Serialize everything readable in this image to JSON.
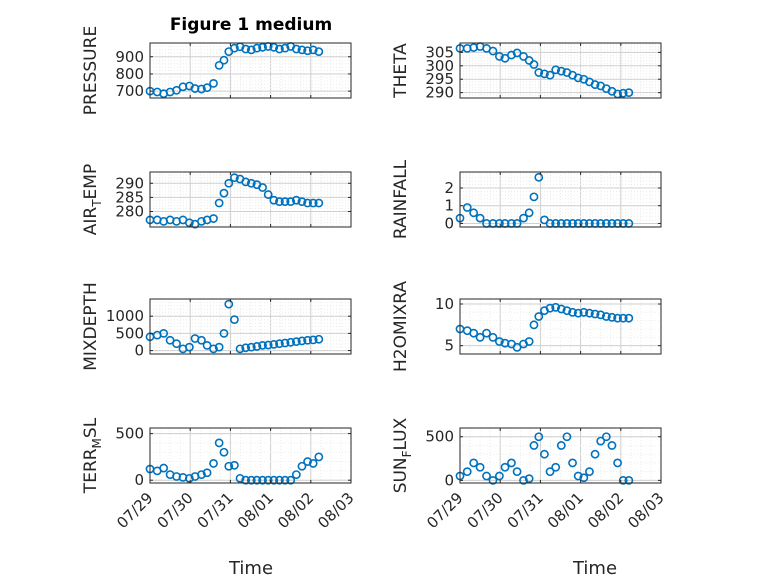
{
  "title": "Figure 1 medium",
  "xlabel": "Time",
  "x_tick_labels": [
    "07/29",
    "07/30",
    "07/31",
    "08/01",
    "08/02",
    "08/03"
  ],
  "colors": {
    "marker": "#0072BD",
    "axis": "#262626",
    "grid": "#dcdcdc",
    "background": "#ffffff"
  },
  "chart_data": [
    {
      "type": "scatter",
      "ylabel": "PRESSURE",
      "ylabel_sub": "",
      "ylabel_tail": "",
      "ylim": [
        660,
        980
      ],
      "yticks": [
        700,
        800,
        900
      ],
      "x": [
        0.0,
        0.18,
        0.34,
        0.5,
        0.66,
        0.82,
        0.98,
        1.12,
        1.28,
        1.42,
        1.58,
        1.72,
        1.84,
        1.96,
        2.1,
        2.24,
        2.38,
        2.52,
        2.66,
        2.8,
        2.94,
        3.08,
        3.22,
        3.36,
        3.5,
        3.64,
        3.78,
        3.92,
        4.06,
        4.2
      ],
      "y": [
        700,
        695,
        685,
        695,
        705,
        725,
        730,
        715,
        712,
        720,
        745,
        850,
        880,
        930,
        950,
        958,
        945,
        940,
        950,
        955,
        960,
        955,
        945,
        950,
        960,
        945,
        940,
        935,
        940,
        930
      ]
    },
    {
      "type": "scatter",
      "ylabel": "THETA",
      "ylabel_sub": "",
      "ylabel_tail": "",
      "ylim": [
        288,
        308.5
      ],
      "yticks": [
        290,
        295,
        300,
        305
      ],
      "x": [
        0.0,
        0.18,
        0.34,
        0.5,
        0.66,
        0.82,
        0.98,
        1.12,
        1.28,
        1.42,
        1.58,
        1.72,
        1.84,
        1.96,
        2.1,
        2.24,
        2.38,
        2.52,
        2.66,
        2.8,
        2.94,
        3.08,
        3.22,
        3.36,
        3.5,
        3.64,
        3.78,
        3.92,
        4.06,
        4.2
      ],
      "y": [
        306.5,
        306.5,
        306.8,
        307.2,
        306.5,
        305.5,
        303.5,
        302.8,
        304.0,
        304.8,
        303.5,
        302.0,
        300.5,
        297.5,
        297.0,
        296.5,
        298.5,
        298.0,
        297.5,
        296.5,
        295.5,
        295.0,
        294.0,
        293.0,
        292.5,
        291.5,
        290.5,
        289.5,
        289.8,
        290.0
      ]
    },
    {
      "type": "scatter",
      "ylabel": "AIR",
      "ylabel_sub": "T",
      "ylabel_tail": "EMP",
      "ylim": [
        274.5,
        294
      ],
      "yticks": [
        280,
        285,
        290
      ],
      "x": [
        0.0,
        0.18,
        0.34,
        0.5,
        0.66,
        0.82,
        0.98,
        1.12,
        1.28,
        1.42,
        1.58,
        1.72,
        1.84,
        1.96,
        2.1,
        2.24,
        2.38,
        2.52,
        2.66,
        2.8,
        2.94,
        3.08,
        3.22,
        3.36,
        3.5,
        3.64,
        3.78,
        3.92,
        4.06,
        4.2
      ],
      "y": [
        277.0,
        277.0,
        276.5,
        277.0,
        276.5,
        277.0,
        276.0,
        275.5,
        276.5,
        277.0,
        277.5,
        283.0,
        286.5,
        290.0,
        292.0,
        291.5,
        290.5,
        290.0,
        289.5,
        288.5,
        286.0,
        284.0,
        283.5,
        283.5,
        283.5,
        284.0,
        283.5,
        283.0,
        283.0,
        283.0
      ]
    },
    {
      "type": "scatter",
      "ylabel": "RAINFALL",
      "ylabel_sub": "",
      "ylabel_tail": "",
      "ylim": [
        -0.2,
        2.9
      ],
      "yticks": [
        0,
        1,
        2
      ],
      "x": [
        0.0,
        0.18,
        0.34,
        0.5,
        0.66,
        0.82,
        0.98,
        1.12,
        1.28,
        1.42,
        1.58,
        1.72,
        1.84,
        1.96,
        2.1,
        2.24,
        2.38,
        2.52,
        2.66,
        2.8,
        2.94,
        3.08,
        3.22,
        3.36,
        3.5,
        3.64,
        3.78,
        3.92,
        4.06,
        4.2
      ],
      "y": [
        0.3,
        0.9,
        0.6,
        0.3,
        0.0,
        0.0,
        0.0,
        0.0,
        0.0,
        0.0,
        0.3,
        0.6,
        1.5,
        2.6,
        0.2,
        0.0,
        0.0,
        0.0,
        0.0,
        0.0,
        0.0,
        0.0,
        0.0,
        0.0,
        0.0,
        0.0,
        0.0,
        0.0,
        0.0,
        0.0
      ]
    },
    {
      "type": "scatter",
      "ylabel": "MIXDEPTH",
      "ylabel_sub": "",
      "ylabel_tail": "",
      "ylim": [
        -100,
        1500
      ],
      "yticks": [
        0,
        500,
        1000
      ],
      "x": [
        0.0,
        0.18,
        0.34,
        0.5,
        0.66,
        0.82,
        0.98,
        1.12,
        1.28,
        1.42,
        1.58,
        1.72,
        1.84,
        1.96,
        2.1,
        2.24,
        2.38,
        2.52,
        2.66,
        2.8,
        2.94,
        3.08,
        3.22,
        3.36,
        3.5,
        3.64,
        3.78,
        3.92,
        4.06,
        4.2
      ],
      "y": [
        400,
        450,
        500,
        300,
        200,
        50,
        100,
        350,
        300,
        150,
        50,
        100,
        500,
        1350,
        900,
        50,
        80,
        100,
        120,
        150,
        160,
        180,
        200,
        220,
        240,
        260,
        280,
        300,
        310,
        330
      ]
    },
    {
      "type": "scatter",
      "ylabel": "H2OMIXRA",
      "ylabel_sub": "",
      "ylabel_tail": "",
      "ylim": [
        4,
        10.6
      ],
      "yticks": [
        5,
        10
      ],
      "x": [
        0.0,
        0.18,
        0.34,
        0.5,
        0.66,
        0.82,
        0.98,
        1.12,
        1.28,
        1.42,
        1.58,
        1.72,
        1.84,
        1.96,
        2.1,
        2.24,
        2.38,
        2.52,
        2.66,
        2.8,
        2.94,
        3.08,
        3.22,
        3.36,
        3.5,
        3.64,
        3.78,
        3.92,
        4.06,
        4.2
      ],
      "y": [
        7.0,
        6.8,
        6.5,
        6.0,
        6.5,
        6.0,
        5.5,
        5.3,
        5.2,
        4.8,
        5.2,
        5.5,
        7.5,
        8.5,
        9.2,
        9.5,
        9.6,
        9.4,
        9.2,
        9.0,
        8.9,
        9.0,
        8.9,
        8.8,
        8.7,
        8.5,
        8.4,
        8.3,
        8.3,
        8.3
      ]
    },
    {
      "type": "scatter",
      "ylabel": "TERR",
      "ylabel_sub": "M",
      "ylabel_tail": "SL",
      "ylim": [
        -30,
        560
      ],
      "yticks": [
        0,
        500
      ],
      "x": [
        0.0,
        0.18,
        0.34,
        0.5,
        0.66,
        0.82,
        0.98,
        1.12,
        1.28,
        1.42,
        1.58,
        1.72,
        1.84,
        1.96,
        2.1,
        2.24,
        2.38,
        2.52,
        2.66,
        2.8,
        2.94,
        3.08,
        3.22,
        3.36,
        3.5,
        3.64,
        3.78,
        3.92,
        4.06,
        4.2
      ],
      "y": [
        120,
        100,
        130,
        60,
        40,
        30,
        20,
        40,
        60,
        80,
        180,
        400,
        300,
        150,
        160,
        20,
        0,
        0,
        0,
        0,
        0,
        0,
        0,
        0,
        0,
        60,
        150,
        200,
        180,
        250
      ]
    },
    {
      "type": "scatter",
      "ylabel": "SUN",
      "ylabel_sub": "F",
      "ylabel_tail": "LUX",
      "ylim": [
        -30,
        600
      ],
      "yticks": [
        0,
        500
      ],
      "x": [
        0.0,
        0.18,
        0.34,
        0.5,
        0.66,
        0.82,
        0.98,
        1.12,
        1.28,
        1.42,
        1.58,
        1.72,
        1.84,
        1.96,
        2.1,
        2.24,
        2.38,
        2.52,
        2.66,
        2.8,
        2.94,
        3.08,
        3.22,
        3.36,
        3.5,
        3.64,
        3.78,
        3.92,
        4.06,
        4.2
      ],
      "y": [
        50,
        100,
        200,
        150,
        50,
        0,
        50,
        150,
        200,
        100,
        0,
        20,
        400,
        500,
        300,
        100,
        150,
        400,
        500,
        200,
        50,
        30,
        100,
        300,
        450,
        500,
        400,
        200,
        0,
        0
      ]
    }
  ]
}
